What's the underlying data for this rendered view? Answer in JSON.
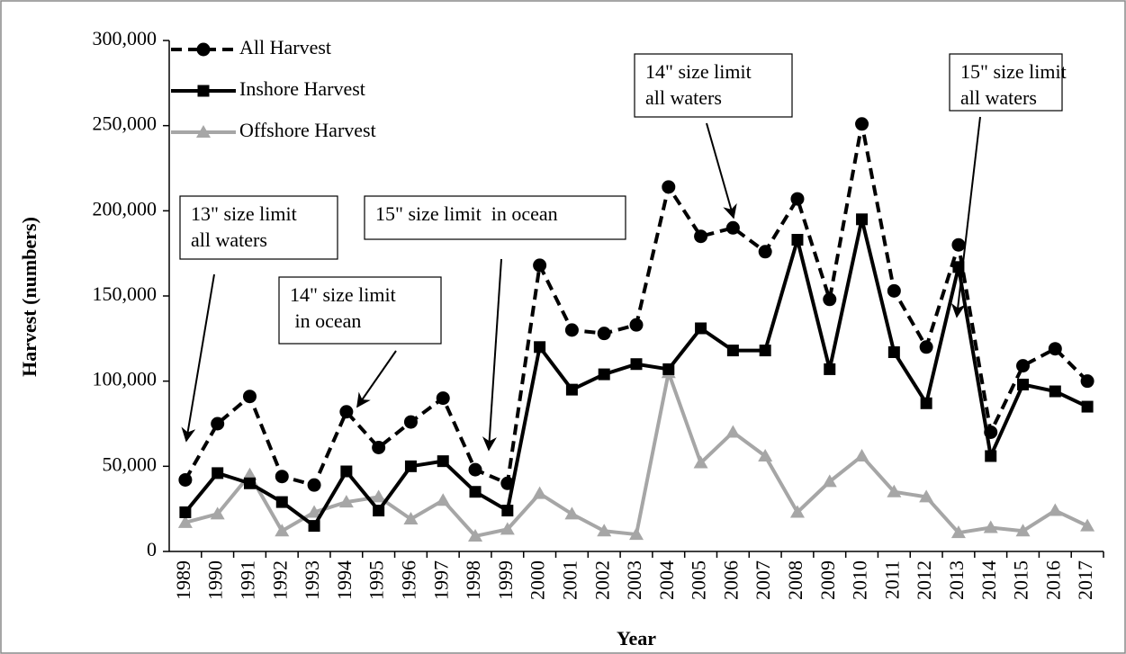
{
  "chart_data": {
    "type": "line",
    "xlabel": "Year",
    "ylabel": "Harvest (numbers)",
    "categories": [
      "1989",
      "1990",
      "1991",
      "1992",
      "1993",
      "1994",
      "1995",
      "1996",
      "1997",
      "1998",
      "1999",
      "2000",
      "2001",
      "2002",
      "2003",
      "2004",
      "2005",
      "2006",
      "2007",
      "2008",
      "2009",
      "2010",
      "2011",
      "2012",
      "2013",
      "2014",
      "2015",
      "2016",
      "2017"
    ],
    "series": [
      {
        "name": "All Harvest",
        "color": "#000000",
        "dash": true,
        "marker": "circle",
        "values": [
          42000,
          75000,
          91000,
          44000,
          39000,
          82000,
          61000,
          76000,
          90000,
          48000,
          40000,
          168000,
          130000,
          128000,
          133000,
          214000,
          185000,
          190000,
          176000,
          207000,
          148000,
          251000,
          153000,
          120000,
          180000,
          70000,
          109000,
          119000,
          100000
        ]
      },
      {
        "name": "Inshore Harvest",
        "color": "#000000",
        "dash": false,
        "marker": "square",
        "values": [
          23000,
          46000,
          40000,
          29000,
          15000,
          47000,
          24000,
          50000,
          53000,
          35000,
          24000,
          120000,
          95000,
          104000,
          110000,
          107000,
          131000,
          118000,
          118000,
          183000,
          107000,
          195000,
          117000,
          87000,
          167000,
          56000,
          98000,
          94000,
          85000
        ]
      },
      {
        "name": "Offshore Harvest",
        "color": "#a6a6a6",
        "dash": false,
        "marker": "triangle",
        "values": [
          17000,
          22000,
          45000,
          12000,
          23000,
          29000,
          32000,
          19000,
          30000,
          9000,
          13000,
          34000,
          22000,
          12000,
          10000,
          105000,
          52000,
          70000,
          56000,
          23000,
          41000,
          56000,
          35000,
          32000,
          11000,
          14000,
          12000,
          24000,
          15000
        ]
      }
    ],
    "ylim": [
      0,
      300000
    ],
    "yticks": [
      0,
      {
        "value": 50000,
        "label": "50,000"
      },
      {
        "value": 100000,
        "label": "100,000"
      },
      {
        "value": 150000,
        "label": "150,000"
      },
      {
        "value": 200000,
        "label": "200,000"
      },
      {
        "value": 250000,
        "label": "250,000"
      },
      {
        "value": 300000,
        "label": "300,000"
      }
    ],
    "grid": false,
    "legend": "upper left",
    "annotations": [
      {
        "lines": [
          "13\" size limit",
          "all waters"
        ]
      },
      {
        "lines": [
          "14\" size limit",
          " in ocean"
        ]
      },
      {
        "lines": [
          "15\" size limit  in ocean"
        ]
      },
      {
        "lines": [
          "14\" size limit",
          "all waters"
        ]
      },
      {
        "lines": [
          "15\" size limit",
          "all waters"
        ]
      }
    ]
  }
}
